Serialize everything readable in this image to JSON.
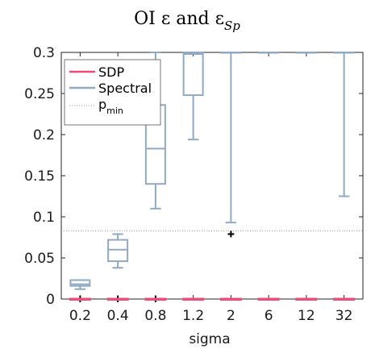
{
  "chart_data": {
    "type": "box",
    "title": "OI ε and ε",
    "title_subscript": "Sp",
    "xlabel": "sigma",
    "ylabel": "",
    "ylim": [
      0,
      0.3
    ],
    "yticks": [
      "0",
      "0.05",
      "0.1",
      "0.15",
      "0.2",
      "0.25",
      "0.3"
    ],
    "categories": [
      "0.2",
      "0.4",
      "0.8",
      "1.2",
      "2",
      "6",
      "12",
      "32"
    ],
    "pmin": 0.083,
    "grid": false,
    "legend_position": "top-left",
    "legend": [
      {
        "label": "SDP",
        "color": "#ee4d7a",
        "style": "solid"
      },
      {
        "label": "Spectral",
        "color": "#91aac4",
        "style": "solid"
      },
      {
        "label": "p",
        "subscript": "min",
        "color": "#9a9a9a",
        "style": "dotted"
      }
    ],
    "series": [
      {
        "name": "Spectral",
        "color": "#91aac4",
        "boxes": [
          {
            "category": "0.2",
            "whisker_low": 0.012,
            "q1": 0.016,
            "median": 0.018,
            "q3": 0.023,
            "whisker_high": 0.023,
            "outliers": [
              0.0
            ]
          },
          {
            "category": "0.4",
            "whisker_low": 0.038,
            "q1": 0.046,
            "median": 0.06,
            "q3": 0.072,
            "whisker_high": 0.079,
            "outliers": [
              0.0
            ]
          },
          {
            "category": "0.8",
            "whisker_low": 0.11,
            "q1": 0.14,
            "median": 0.183,
            "q3": 0.236,
            "whisker_high": 0.3,
            "outliers": [
              0.0
            ]
          },
          {
            "category": "1.2",
            "whisker_low": 0.194,
            "q1": 0.248,
            "median": 0.298,
            "q3": 0.3,
            "whisker_high": 0.3,
            "outliers": []
          },
          {
            "category": "2",
            "whisker_low": 0.093,
            "q1": 0.3,
            "median": 0.3,
            "q3": 0.3,
            "whisker_high": 0.3,
            "outliers": [
              0.079
            ]
          },
          {
            "category": "6",
            "whisker_low": 0.3,
            "q1": 0.3,
            "median": 0.3,
            "q3": 0.3,
            "whisker_high": 0.3,
            "outliers": []
          },
          {
            "category": "12",
            "whisker_low": 0.3,
            "q1": 0.3,
            "median": 0.3,
            "q3": 0.3,
            "whisker_high": 0.3,
            "outliers": []
          },
          {
            "category": "32",
            "whisker_low": 0.125,
            "q1": 0.3,
            "median": 0.3,
            "q3": 0.3,
            "whisker_high": 0.3,
            "outliers": []
          }
        ]
      },
      {
        "name": "SDP",
        "color": "#ee4d7a",
        "boxes": [
          {
            "category": "0.2",
            "whisker_low": 0,
            "q1": 0,
            "median": 0,
            "q3": 0,
            "whisker_high": 0,
            "outliers": []
          },
          {
            "category": "0.4",
            "whisker_low": 0,
            "q1": 0,
            "median": 0,
            "q3": 0,
            "whisker_high": 0,
            "outliers": []
          },
          {
            "category": "0.8",
            "whisker_low": 0,
            "q1": 0,
            "median": 0,
            "q3": 0,
            "whisker_high": 0,
            "outliers": []
          },
          {
            "category": "1.2",
            "whisker_low": 0,
            "q1": 0,
            "median": 0,
            "q3": 0,
            "whisker_high": 0,
            "outliers": []
          },
          {
            "category": "2",
            "whisker_low": 0,
            "q1": 0,
            "median": 0,
            "q3": 0,
            "whisker_high": 0,
            "outliers": []
          },
          {
            "category": "6",
            "whisker_low": 0,
            "q1": 0,
            "median": 0,
            "q3": 0,
            "whisker_high": 0,
            "outliers": []
          },
          {
            "category": "12",
            "whisker_low": 0,
            "q1": 0,
            "median": 0,
            "q3": 0,
            "whisker_high": 0,
            "outliers": []
          },
          {
            "category": "32",
            "whisker_low": 0,
            "q1": 0,
            "median": 0,
            "q3": 0,
            "whisker_high": 0,
            "outliers": []
          }
        ]
      }
    ]
  }
}
